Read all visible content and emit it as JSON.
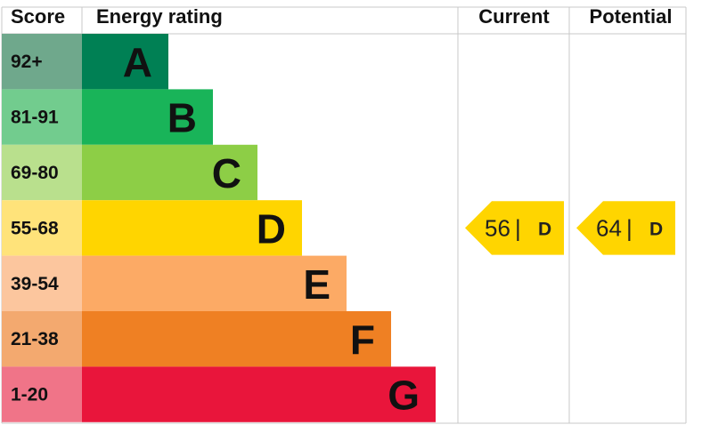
{
  "chart_data": {
    "type": "bar",
    "headers": {
      "score": "Score",
      "rating": "Energy rating",
      "current": "Current",
      "potential": "Potential"
    },
    "bands": [
      {
        "range": "92+",
        "letter": "A",
        "color": "#008054",
        "score_bg": "#6fa88c"
      },
      {
        "range": "81-91",
        "letter": "B",
        "color": "#19b459",
        "score_bg": "#72cc8e"
      },
      {
        "range": "69-80",
        "letter": "C",
        "color": "#8dce46",
        "score_bg": "#b9e08d"
      },
      {
        "range": "55-68",
        "letter": "D",
        "color": "#ffd500",
        "score_bg": "#ffe37a"
      },
      {
        "range": "39-54",
        "letter": "E",
        "color": "#fcaa65",
        "score_bg": "#fcc69e"
      },
      {
        "range": "21-38",
        "letter": "F",
        "color": "#ef8023",
        "score_bg": "#f3a96f"
      },
      {
        "range": "1-20",
        "letter": "G",
        "color": "#e9153b",
        "score_bg": "#f07488"
      }
    ],
    "current": {
      "value": 56,
      "separator": "|",
      "letter": "D",
      "color": "#ffd500"
    },
    "potential": {
      "value": 64,
      "separator": "|",
      "letter": "D",
      "color": "#ffd500"
    }
  }
}
